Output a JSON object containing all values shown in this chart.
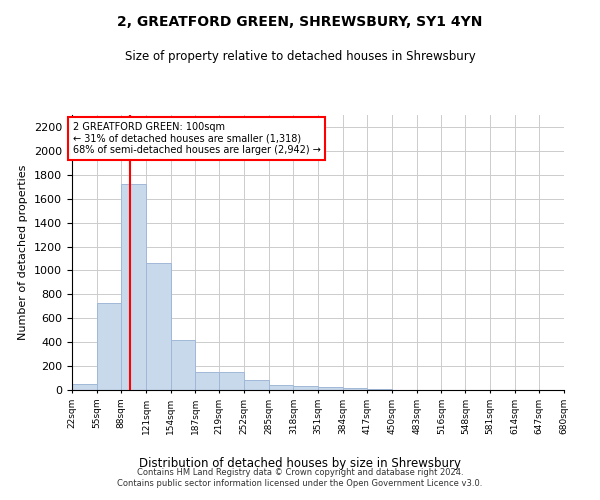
{
  "title": "2, GREATFORD GREEN, SHREWSBURY, SY1 4YN",
  "subtitle": "Size of property relative to detached houses in Shrewsbury",
  "xlabel": "Distribution of detached houses by size in Shrewsbury",
  "ylabel": "Number of detached properties",
  "footer_line1": "Contains HM Land Registry data © Crown copyright and database right 2024.",
  "footer_line2": "Contains public sector information licensed under the Open Government Licence v3.0.",
  "annotation_line1": "2 GREATFORD GREEN: 100sqm",
  "annotation_line2": "← 31% of detached houses are smaller (1,318)",
  "annotation_line3": "68% of semi-detached houses are larger (2,942) →",
  "bar_color": "#c9d9ec",
  "bar_edge_color": "#a0b8d8",
  "red_line_x": 100,
  "ylim": [
    0,
    2300
  ],
  "yticks": [
    0,
    200,
    400,
    600,
    800,
    1000,
    1200,
    1400,
    1600,
    1800,
    2000,
    2200
  ],
  "bin_edges": [
    22,
    55,
    88,
    121,
    154,
    187,
    219,
    252,
    285,
    318,
    351,
    384,
    417,
    450,
    483,
    516,
    548,
    581,
    614,
    647,
    680
  ],
  "bar_heights": [
    50,
    730,
    1720,
    1060,
    420,
    150,
    150,
    80,
    40,
    35,
    25,
    20,
    10,
    0,
    0,
    0,
    0,
    0,
    0,
    0
  ]
}
